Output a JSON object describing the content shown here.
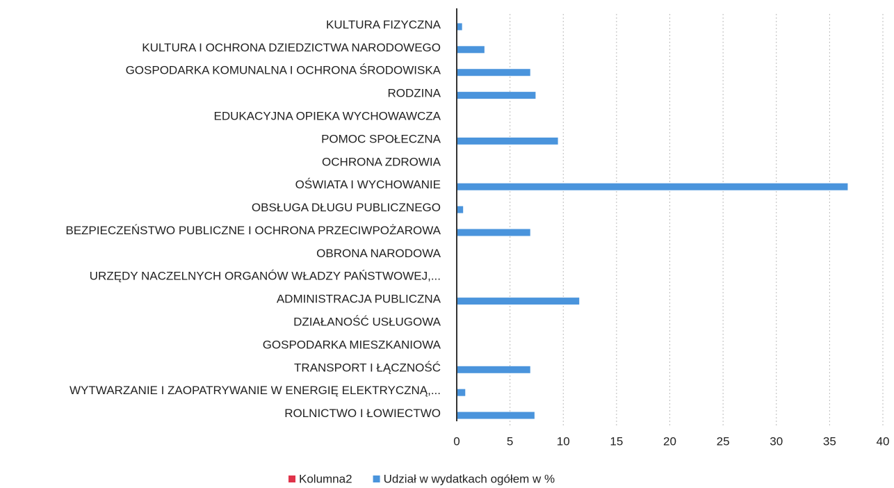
{
  "chart_data": {
    "type": "hbar",
    "categories": [
      "KULTURA FIZYCZNA",
      "KULTURA I OCHRONA DZIEDZICTWA NARODOWEGO",
      "GOSPODARKA KOMUNALNA I OCHRONA ŚRODOWISKA",
      "RODZINA",
      "EDUKACYJNA OPIEKA WYCHOWAWCZA",
      "POMOC SPOŁECZNA",
      "OCHRONA ZDROWIA",
      "OŚWIATA I WYCHOWANIE",
      "OBSŁUGA DŁUGU PUBLICZNEGO",
      "BEZPIECZEŃSTWO PUBLICZNE I OCHRONA PRZECIWPOŻAROWA",
      "OBRONA NARODOWA",
      "URZĘDY NACZELNYCH ORGANÓW WŁADZY PAŃSTWOWEJ,...",
      "ADMINISTRACJA PUBLICZNA",
      "DZIAŁANOŚĆ USŁUGOWA",
      "GOSPODARKA MIESZKANIOWA",
      "TRANSPORT I ŁĄCZNOŚĆ",
      "WYTWARZANIE I ZAOPATRYWANIE W ENERGIĘ ELEKTRYCZNĄ,...",
      "ROLNICTWO I ŁOWIECTWO"
    ],
    "series": [
      {
        "name": "Kolumna2",
        "color": "#e0334a",
        "values": [
          null,
          null,
          null,
          null,
          null,
          null,
          null,
          null,
          null,
          null,
          null,
          null,
          null,
          null,
          null,
          null,
          null,
          null
        ]
      },
      {
        "name": "Udział w wydatkach ogółem w %",
        "color": "#4a94dc",
        "values": [
          0.5,
          2.6,
          6.9,
          7.4,
          0,
          9.5,
          0,
          36.7,
          0.6,
          6.9,
          0,
          0,
          11.5,
          0,
          0,
          6.9,
          0.8,
          7.3
        ]
      }
    ],
    "xlim": [
      0,
      40
    ],
    "xticks": [
      0,
      5,
      10,
      15,
      20,
      25,
      30,
      35,
      40
    ],
    "grid": true,
    "legend": "bottom"
  }
}
